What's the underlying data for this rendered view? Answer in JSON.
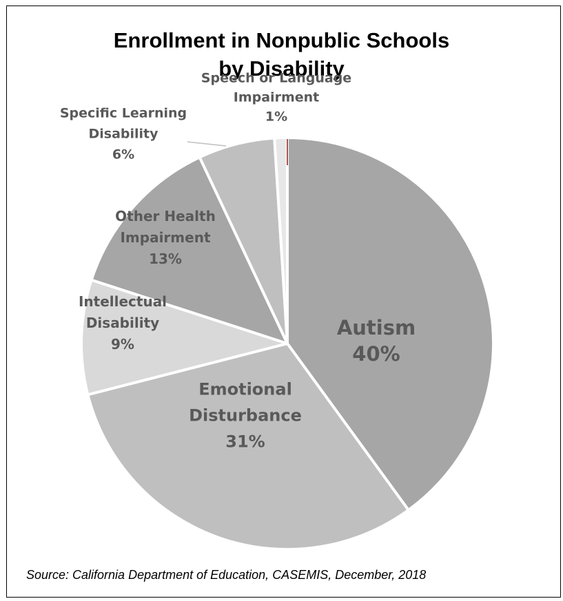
{
  "chart_data": {
    "type": "pie",
    "title_lines": [
      "Enrollment in Nonpublic Schools",
      "by Disability"
    ],
    "slices": [
      {
        "label": "Autism",
        "value": 40,
        "percent_label": "40%",
        "color": "#a6a6a6"
      },
      {
        "label": "Emotional Disturbance",
        "value": 31,
        "percent_label": "31%",
        "color": "#bfbfbf"
      },
      {
        "label": "Intellectual Disability",
        "value": 9,
        "percent_label": "9%",
        "color": "#d9d9d9"
      },
      {
        "label": "Other Health Impairment",
        "value": 13,
        "percent_label": "13%",
        "color": "#a6a6a6"
      },
      {
        "label": "Specific Learning Disability",
        "value": 6,
        "percent_label": "6%",
        "color": "#bfbfbf"
      },
      {
        "label": "Speech or Language Impairment",
        "value": 1,
        "percent_label": "1%",
        "color": "#e7e7e7"
      }
    ],
    "label_lines": {
      "Autism": [
        "Autism",
        "40%"
      ],
      "Emotional Disturbance": [
        "Emotional",
        "Disturbance",
        "31%"
      ],
      "Intellectual Disability": [
        "Intellectual",
        "Disability",
        "9%"
      ],
      "Other Health Impairment": [
        "Other Health",
        "Impairment",
        "13%"
      ],
      "Specific Learning Disability": [
        "Specific Learning",
        "Disability",
        "6%"
      ],
      "Speech or Language Impairment": [
        "Speech or Language",
        "Impairment",
        "1%"
      ]
    },
    "start_angle_deg": 0,
    "direction": "clockwise",
    "slice_border_color": "#ffffff",
    "label_color": "#595959",
    "leader_line_color": "#bfbfbf",
    "legend": "none"
  },
  "source": "Source:  California Department of Education, CASEMIS, December, 2018"
}
